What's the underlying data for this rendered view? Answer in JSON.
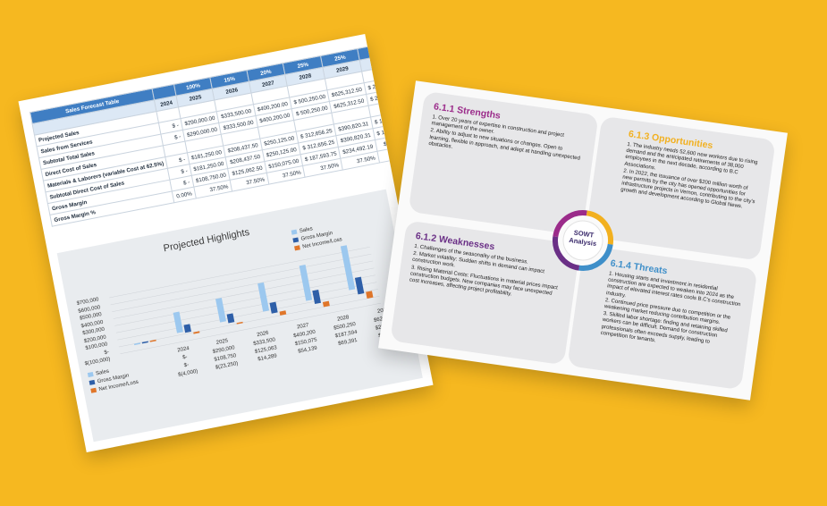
{
  "spreadsheet": {
    "header_row": [
      "Sales Forecast Table",
      "",
      "100%",
      "15%",
      "20%",
      "25%",
      "25%",
      "Total"
    ],
    "years": [
      "",
      "2024",
      "2025",
      "2026",
      "2027",
      "2028",
      "2029",
      ""
    ],
    "rows": [
      [
        "Projected Sales",
        "",
        "",
        "",
        "",
        "",
        "",
        ""
      ],
      [
        "Sales from Services",
        "$ -",
        "$290,000.00",
        "$333,500.00",
        "$400,200.00",
        "$ 500,250.00",
        "$625,312.50",
        "$ 2,149,262.50"
      ],
      [
        "Subtotal Total Sales",
        "$ -",
        "$290,000.00",
        "$333,500.00",
        "$400,200.00",
        "$ 500,250.00",
        "$625,312.50",
        "$ 2,149,262.50"
      ],
      [
        "Direct Cost of Sales",
        "",
        "",
        "",
        "",
        "",
        "",
        ""
      ],
      [
        "Materials & Laborers (variable Cost at 62.5%)",
        "$ -",
        "$181,250.00",
        "$208,437.50",
        "$250,125.00",
        "$ 312,656.25",
        "$390,820.31",
        "$ 1,343,289.06"
      ],
      [
        "Subtotal Direct Cost of Sales",
        "$ -",
        "$181,250.00",
        "$208,437.50",
        "$250,125.00",
        "$ 312,656.25",
        "$390,820.31",
        "$ 1,343,289.06"
      ],
      [
        "Gross Margin",
        "$ -",
        "$108,750.00",
        "$125,062.50",
        "$150,075.00",
        "$ 187,593.75",
        "$234,492.19",
        "$ 805,973.44"
      ],
      [
        "Gross Margin %",
        "0.00%",
        "37.50%",
        "37.50%",
        "37.50%",
        "37.50%",
        "37.50%",
        ""
      ]
    ]
  },
  "chart_data": {
    "type": "bar",
    "title": "Projected Highlights",
    "categories": [
      "2024",
      "2025",
      "2026",
      "2027",
      "2028",
      "2029"
    ],
    "series": [
      {
        "name": "Sales",
        "values": [
          0,
          290000,
          333500,
          400200,
          500250,
          625313
        ],
        "labels": [
          "$-",
          "$290,000",
          "$333,500",
          "$400,200",
          "$500,250",
          "$625,313"
        ],
        "color": "#9cc8ef"
      },
      {
        "name": "Gross Margin",
        "values": [
          0,
          108750,
          125063,
          150075,
          187594,
          234492
        ],
        "labels": [
          "$-",
          "$108,750",
          "$125,063",
          "$150,075",
          "$187,594",
          "$234,492"
        ],
        "color": "#2e5fa8"
      },
      {
        "name": "Net Income/Loss",
        "values": [
          -4000,
          -23250,
          14289,
          54139,
          69391,
          93258
        ],
        "labels": [
          "$(4,000)",
          "$(23,250)",
          "$14,289",
          "$54,139",
          "$69,391",
          "$93,258"
        ],
        "color": "#e0762a"
      }
    ],
    "yticks": [
      "$700,000",
      "$600,000",
      "$500,000",
      "$400,000",
      "$300,000",
      "$200,000",
      "$100,000",
      "$-",
      "$(100,000)"
    ],
    "ylim": [
      -100000,
      700000
    ],
    "legend_position": "right"
  },
  "swot": {
    "center_label": "SOWT Analysis",
    "colors": {
      "strengths": "#9b2b8a",
      "opportunities": "#f2b01f",
      "weaknesses": "#6a2f86",
      "threats": "#3f8fc9"
    },
    "strengths": {
      "title": "6.1.1 Strengths",
      "items": [
        "1. Over 20 years of expertise in construction and project management of the owner.",
        "2. Ability to adjust to new situations or changes. Open to learning, flexible in approach, and adept at handling unexpected obstacles."
      ]
    },
    "opportunities": {
      "title": "6.1.3 Opportunities",
      "items": [
        "1. The industry needs 52,600 new workers due to rising demand and the anticipated retirements of 38,000 employees in the next decade, according to B.C Associations.",
        "2. In 2022, the issuance of over $200 million worth of new permits by the city has opened opportunities for infrastructure projects in Vernon, contributing to the city's growth and development according to Global News."
      ]
    },
    "weaknesses": {
      "title": "6.1.2 Weaknesses",
      "items": [
        "1. Challenges of the seasonality of the business.",
        "2. Market volatility: Sudden shifts in demand can impact construction work.",
        "3. Rising Material Costs: Fluctuations in material prices impact construction budgets. New companies may face unexpected cost increases, affecting project profitability."
      ]
    },
    "threats": {
      "title": "6.1.4 Threats",
      "items": [
        "1. Housing starts and investment in residential construction are expected to weaken into 2024 as the impact of elevated interest rates cools B.C's construction industry.",
        "2. Continued price pressure due to competition or the weakening market reducing contribution margins.",
        "3. Skilled labor shortage: finding and retaining skilled workers can be difficult. Demand for construction professionals often exceeds supply, leading to competition for tenants."
      ]
    }
  }
}
